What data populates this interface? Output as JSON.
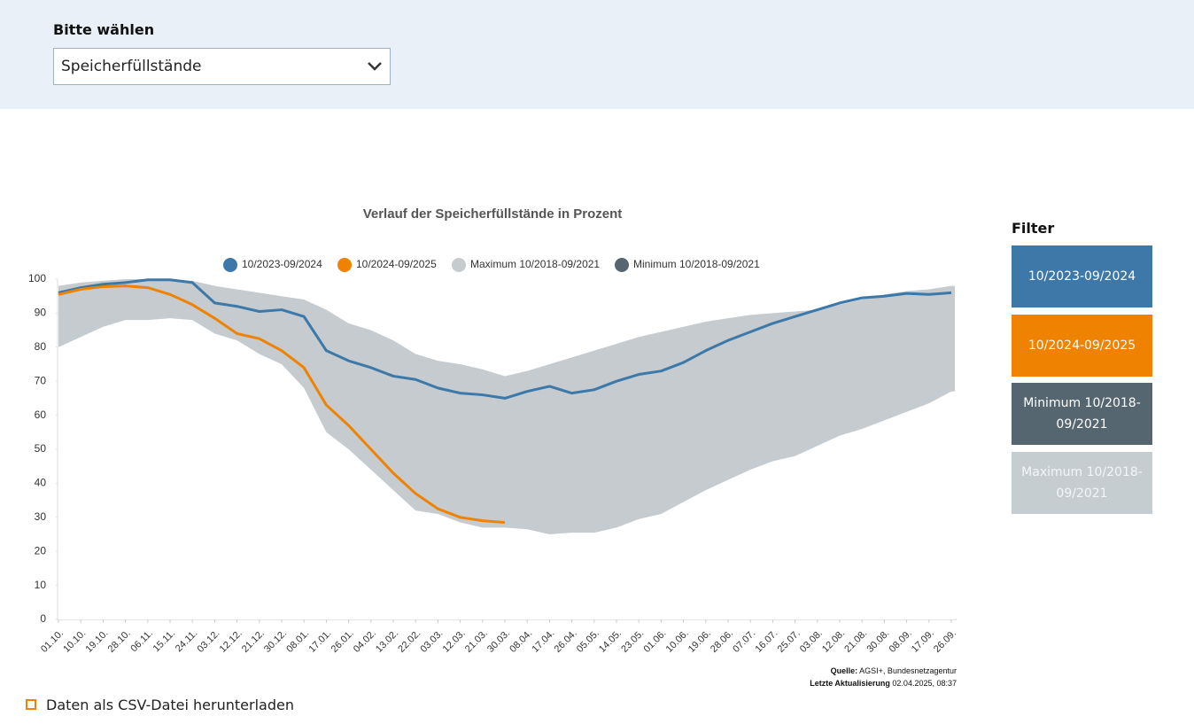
{
  "header": {
    "label": "Bitte wählen",
    "select": "Speicherfüllstände"
  },
  "filter": {
    "title": "Filter",
    "buttons": [
      "10/2023-09/2024",
      "10/2024-09/2025",
      "Minimum 10/2018-09/2021",
      "Maximum 10/2018-09/2021"
    ]
  },
  "source": {
    "label": "Quelle:",
    "text": "AGSI+, Bundesnetzagentur",
    "updated_label": "Letzte Aktualisierung",
    "updated": "02.04.2025, 08:37"
  },
  "download": "Daten als CSV-Datei herunterladen",
  "chart_data": {
    "type": "line",
    "title": "Verlauf der Speicherfüllstände in Prozent",
    "categories": [
      "01.10.",
      "10.10.",
      "19.10.",
      "28.10.",
      "06.11.",
      "15.11.",
      "24.11.",
      "03.12.",
      "12.12.",
      "21.12.",
      "30.12.",
      "08.01.",
      "17.01.",
      "26.01.",
      "04.02.",
      "13.02.",
      "22.02.",
      "03.03.",
      "12.03.",
      "21.03.",
      "30.03.",
      "08.04.",
      "17.04.",
      "26.04.",
      "05.05.",
      "14.05.",
      "23.05.",
      "01.06.",
      "10.06.",
      "19.06.",
      "28.06.",
      "07.07.",
      "16.07.",
      "25.07.",
      "03.08.",
      "12.08.",
      "21.08.",
      "30.08.",
      "08.09.",
      "17.09.",
      "26.09."
    ],
    "series": [
      {
        "name": "10/2023-09/2024",
        "color": "#3c78a8",
        "values": [
          96,
          97.5,
          98.5,
          99,
          99.8,
          99.8,
          99,
          93,
          92,
          90.5,
          91,
          89,
          79,
          76,
          74,
          71.5,
          70.5,
          68,
          66.5,
          66,
          65,
          67,
          68.5,
          66.5,
          67.5,
          70,
          72,
          73,
          75.5,
          79,
          82,
          84.5,
          87,
          89,
          91,
          93,
          94.5,
          95,
          95.8,
          95.5,
          96
        ]
      },
      {
        "name": "10/2024-09/2025",
        "color": "#ef8200",
        "values": [
          95.5,
          97,
          97.8,
          98,
          97.5,
          95.5,
          92.5,
          88.5,
          84,
          82.5,
          79,
          74,
          63,
          57,
          50,
          43,
          37,
          32.5,
          30,
          29,
          28.5,
          null,
          null,
          null,
          null,
          null,
          null,
          null,
          null,
          null,
          null,
          null,
          null,
          null,
          null,
          null,
          null,
          null,
          null,
          null,
          null
        ]
      },
      {
        "name": "Maximum 10/2018-09/2021",
        "color": "#c5cbcf",
        "area": true,
        "values": [
          98,
          99,
          99.5,
          100,
          100,
          100,
          99.5,
          98,
          97,
          96,
          95,
          94,
          91,
          87,
          85,
          82,
          78,
          76,
          75,
          73.5,
          71.5,
          73,
          75,
          77,
          79,
          81,
          83,
          84.5,
          86,
          87.5,
          88.5,
          89.5,
          90,
          90.5,
          91,
          92.5,
          94,
          95.5,
          96.5,
          97,
          98
        ]
      },
      {
        "name": "Minimum 10/2018-09/2021",
        "color": "#566670",
        "area": true,
        "values": [
          80,
          83,
          86,
          88,
          88,
          88.5,
          88,
          84,
          82,
          78,
          75,
          68,
          55,
          50,
          44,
          38,
          32,
          31,
          28.5,
          27,
          27,
          26.5,
          25,
          25.5,
          25.5,
          27,
          29.5,
          31,
          34.5,
          38,
          41,
          44,
          46.5,
          48,
          51,
          54,
          56,
          58.5,
          61,
          63.5,
          67
        ]
      }
    ],
    "ylim": [
      0,
      100
    ],
    "yticks": [
      0,
      10,
      20,
      30,
      40,
      50,
      60,
      70,
      80,
      90,
      100
    ],
    "grid": false,
    "legend": "top"
  }
}
